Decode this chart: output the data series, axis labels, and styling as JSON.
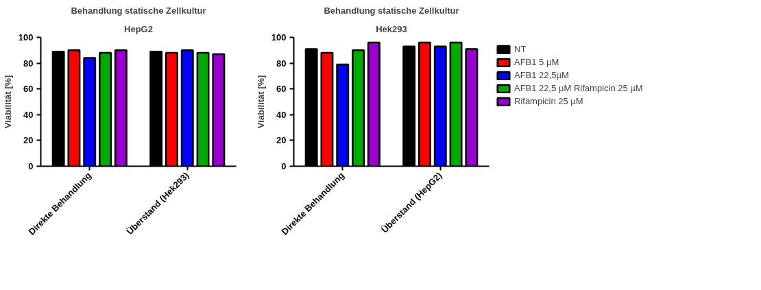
{
  "chart_data": [
    {
      "type": "bar",
      "title": "Behandlung statische Zellkultur",
      "subtitle": "HepG2",
      "ylabel": "Viabilität [%]",
      "categories": [
        "Direkte Behandlung",
        "Überstand (Hek293)"
      ],
      "ylim": [
        0,
        100
      ],
      "yticks": [
        0,
        20,
        40,
        60,
        80,
        100
      ],
      "grid": false,
      "legend": false,
      "series": [
        {
          "color": "#000000",
          "values": [
            89,
            89
          ]
        },
        {
          "color": "#ff0000",
          "values": [
            90,
            88
          ]
        },
        {
          "color": "#0000ff",
          "values": [
            84,
            90
          ]
        },
        {
          "color": "#00aa00",
          "values": [
            88,
            88
          ]
        },
        {
          "color": "#9900cc",
          "values": [
            90,
            87
          ]
        }
      ]
    },
    {
      "type": "bar",
      "title": "Behandlung statische Zellkultur",
      "subtitle": "Hek293",
      "ylabel": "Viabilität [%]",
      "categories": [
        "Direkte Behandlung",
        "Überstand (HepG2)"
      ],
      "ylim": [
        0,
        100
      ],
      "yticks": [
        0,
        20,
        40,
        60,
        80,
        100
      ],
      "grid": false,
      "legend": "right",
      "series": [
        {
          "name": "NT",
          "color": "#000000",
          "values": [
            91,
            93
          ]
        },
        {
          "name": "AFB1 5 µM",
          "color": "#ff0000",
          "values": [
            88,
            96
          ]
        },
        {
          "name": "AFB1 22,5µM",
          "color": "#0000ff",
          "values": [
            79,
            93
          ]
        },
        {
          "name": "AFB1 22,5 µM Rifampicin 25 µM",
          "color": "#00aa00",
          "values": [
            90,
            96
          ]
        },
        {
          "name": "Rifampicin 25 µM",
          "color": "#9900cc",
          "values": [
            96,
            91
          ]
        }
      ]
    }
  ]
}
